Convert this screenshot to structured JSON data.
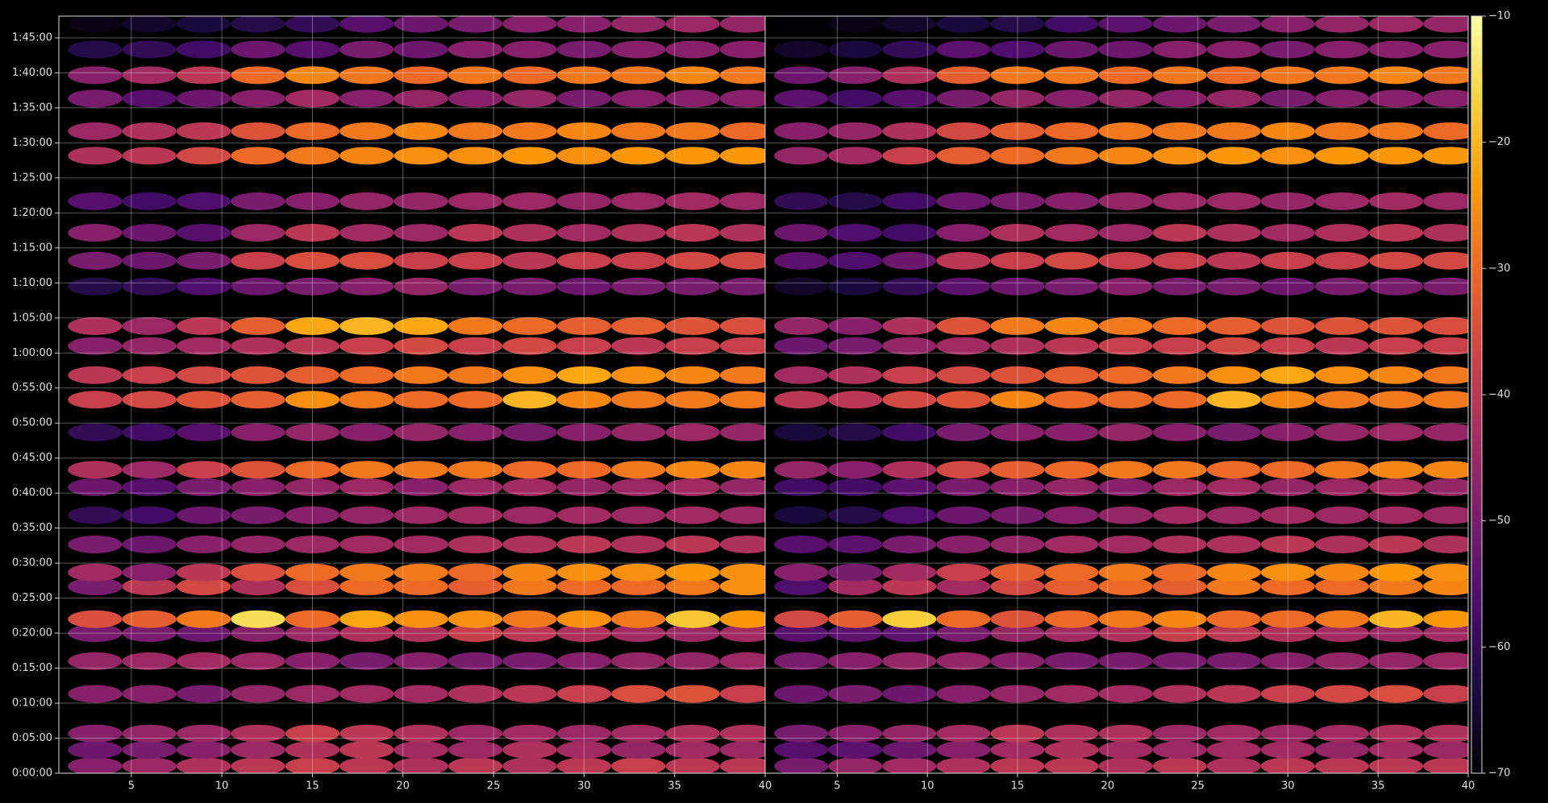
{
  "chart_data": [
    {
      "type": "heatmap",
      "x": [
        3,
        6,
        9,
        12,
        15,
        18,
        21,
        24,
        27,
        30,
        33,
        36,
        39
      ],
      "y": [
        60,
        200,
        340,
        680,
        960,
        1200,
        1320,
        1600,
        1720,
        1960,
        2210,
        2450,
        2600,
        2920,
        3200,
        3410,
        3660,
        3830,
        4170,
        4390,
        4630,
        4900,
        5290,
        5500,
        5780,
        5980,
        6200,
        6420
      ],
      "values": [
        [
          -48,
          -45,
          -42,
          -40,
          -38,
          -40,
          -42,
          -40,
          -42,
          -40,
          -38,
          -40,
          -40
        ],
        [
          -52,
          -50,
          -48,
          -45,
          -42,
          -40,
          -44,
          -45,
          -42,
          -44,
          -46,
          -44,
          -45
        ],
        [
          -48,
          -46,
          -45,
          -42,
          -38,
          -40,
          -42,
          -45,
          -44,
          -45,
          -44,
          -42,
          -42
        ],
        [
          -48,
          -48,
          -50,
          -46,
          -45,
          -44,
          -44,
          -42,
          -40,
          -38,
          -35,
          -34,
          -38
        ],
        [
          -46,
          -45,
          -44,
          -45,
          -48,
          -50,
          -48,
          -50,
          -50,
          -48,
          -46,
          -46,
          -45
        ],
        [
          -50,
          -50,
          -52,
          -48,
          -45,
          -42,
          -42,
          -38,
          -40,
          -42,
          -44,
          -45,
          -44
        ],
        [
          -35,
          -32,
          -28,
          -15,
          -30,
          -22,
          -25,
          -25,
          -28,
          -25,
          -28,
          -18,
          -24
        ],
        [
          -50,
          -40,
          -36,
          -42,
          -35,
          -30,
          -30,
          -32,
          -28,
          -30,
          -30,
          -28,
          -25
        ],
        [
          -44,
          -48,
          -40,
          -35,
          -30,
          -28,
          -28,
          -30,
          -26,
          -25,
          -25,
          -24,
          -25
        ],
        [
          -50,
          -52,
          -48,
          -46,
          -45,
          -44,
          -44,
          -42,
          -42,
          -40,
          -42,
          -40,
          -42
        ],
        [
          -60,
          -58,
          -52,
          -50,
          -48,
          -46,
          -45,
          -44,
          -45,
          -44,
          -45,
          -44,
          -45
        ],
        [
          -52,
          -55,
          -50,
          -48,
          -46,
          -45,
          -48,
          -45,
          -44,
          -46,
          -45,
          -44,
          -46
        ],
        [
          -42,
          -45,
          -38,
          -34,
          -30,
          -28,
          -28,
          -28,
          -30,
          -30,
          -28,
          -26,
          -26
        ],
        [
          -60,
          -58,
          -55,
          -48,
          -46,
          -48,
          -46,
          -48,
          -50,
          -48,
          -46,
          -45,
          -46
        ],
        [
          -38,
          -36,
          -34,
          -32,
          -25,
          -28,
          -30,
          -30,
          -20,
          -26,
          -28,
          -28,
          -28
        ],
        [
          -40,
          -38,
          -36,
          -34,
          -32,
          -30,
          -28,
          -28,
          -25,
          -22,
          -25,
          -26,
          -28
        ],
        [
          -48,
          -46,
          -44,
          -42,
          -40,
          -38,
          -36,
          -38,
          -36,
          -38,
          -40,
          -38,
          -38
        ],
        [
          -42,
          -45,
          -40,
          -32,
          -22,
          -20,
          -22,
          -28,
          -30,
          -32,
          -32,
          -34,
          -35
        ],
        [
          -62,
          -60,
          -56,
          -52,
          -50,
          -48,
          -46,
          -50,
          -50,
          -52,
          -50,
          -50,
          -50
        ],
        [
          -50,
          -52,
          -50,
          -38,
          -35,
          -35,
          -38,
          -38,
          -40,
          -38,
          -38,
          -36,
          -36
        ],
        [
          -48,
          -52,
          -55,
          -45,
          -40,
          -44,
          -45,
          -40,
          -42,
          -44,
          -42,
          -40,
          -42
        ],
        [
          -55,
          -58,
          -56,
          -50,
          -48,
          -46,
          -46,
          -45,
          -45,
          -46,
          -45,
          -44,
          -45
        ],
        [
          -42,
          -40,
          -36,
          -30,
          -28,
          -26,
          -25,
          -25,
          -24,
          -25,
          -24,
          -24,
          -24
        ],
        [
          -45,
          -42,
          -40,
          -34,
          -30,
          -28,
          -26,
          -28,
          -28,
          -26,
          -28,
          -28,
          -30
        ],
        [
          -50,
          -55,
          -52,
          -48,
          -44,
          -48,
          -46,
          -48,
          -46,
          -50,
          -48,
          -48,
          -48
        ],
        [
          -48,
          -44,
          -40,
          -30,
          -26,
          -28,
          -30,
          -28,
          -30,
          -28,
          -28,
          -26,
          -28
        ],
        [
          -62,
          -60,
          -58,
          -52,
          -55,
          -50,
          -52,
          -48,
          -48,
          -50,
          -48,
          -48,
          -48
        ],
        [
          -68,
          -66,
          -64,
          -62,
          -60,
          -55,
          -52,
          -50,
          -48,
          -48,
          -46,
          -45,
          -46
        ]
      ],
      "xlim": [
        1,
        40
      ],
      "ylim": [
        0,
        6486
      ],
      "xticks": [
        5,
        10,
        15,
        20,
        25,
        30,
        35,
        40
      ],
      "yticks": [
        {
          "value": 0,
          "label": "0:00:00"
        },
        {
          "value": 300,
          "label": "0:05:00"
        },
        {
          "value": 600,
          "label": "0:10:00"
        },
        {
          "value": 900,
          "label": "0:15:00"
        },
        {
          "value": 1200,
          "label": "0:20:00"
        },
        {
          "value": 1500,
          "label": "0:25:00"
        },
        {
          "value": 1800,
          "label": "0:30:00"
        },
        {
          "value": 2100,
          "label": "0:35:00"
        },
        {
          "value": 2400,
          "label": "0:40:00"
        },
        {
          "value": 2700,
          "label": "0:45:00"
        },
        {
          "value": 3000,
          "label": "0:50:00"
        },
        {
          "value": 3300,
          "label": "0:55:00"
        },
        {
          "value": 3600,
          "label": "1:00:00"
        },
        {
          "value": 3900,
          "label": "1:05:00"
        },
        {
          "value": 4200,
          "label": "1:10:00"
        },
        {
          "value": 4500,
          "label": "1:15:00"
        },
        {
          "value": 4800,
          "label": "1:20:00"
        },
        {
          "value": 5100,
          "label": "1:25:00"
        },
        {
          "value": 5400,
          "label": "1:30:00"
        },
        {
          "value": 5700,
          "label": "1:35:00"
        },
        {
          "value": 6000,
          "label": "1:40:00"
        },
        {
          "value": 6300,
          "label": "1:45:00"
        }
      ],
      "grid": true,
      "colormap": "inferno"
    },
    {
      "type": "heatmap",
      "x": [
        3,
        6,
        9,
        12,
        15,
        18,
        21,
        24,
        27,
        30,
        33,
        36,
        39
      ],
      "y": [
        60,
        200,
        340,
        680,
        960,
        1200,
        1320,
        1600,
        1720,
        1960,
        2210,
        2450,
        2600,
        2920,
        3200,
        3410,
        3660,
        3830,
        4170,
        4390,
        4630,
        4900,
        5290,
        5500,
        5780,
        5980,
        6200,
        6420
      ],
      "values": [
        [
          -50,
          -46,
          -44,
          -42,
          -40,
          -40,
          -42,
          -40,
          -42,
          -40,
          -40,
          -40,
          -40
        ],
        [
          -55,
          -54,
          -52,
          -48,
          -44,
          -42,
          -44,
          -45,
          -44,
          -44,
          -46,
          -44,
          -45
        ],
        [
          -50,
          -48,
          -46,
          -44,
          -40,
          -42,
          -42,
          -45,
          -44,
          -45,
          -44,
          -42,
          -42
        ],
        [
          -52,
          -50,
          -52,
          -48,
          -46,
          -44,
          -44,
          -42,
          -40,
          -38,
          -36,
          -35,
          -38
        ],
        [
          -50,
          -48,
          -46,
          -46,
          -48,
          -50,
          -50,
          -50,
          -50,
          -48,
          -46,
          -46,
          -45
        ],
        [
          -55,
          -54,
          -54,
          -50,
          -46,
          -44,
          -42,
          -38,
          -40,
          -42,
          -44,
          -45,
          -44
        ],
        [
          -36,
          -32,
          -17,
          -30,
          -34,
          -30,
          -28,
          -26,
          -30,
          -30,
          -28,
          -20,
          -24
        ],
        [
          -56,
          -44,
          -40,
          -44,
          -36,
          -32,
          -30,
          -32,
          -28,
          -30,
          -30,
          -28,
          -26
        ],
        [
          -48,
          -50,
          -44,
          -38,
          -32,
          -30,
          -28,
          -30,
          -26,
          -25,
          -26,
          -24,
          -25
        ],
        [
          -55,
          -54,
          -50,
          -48,
          -46,
          -44,
          -44,
          -42,
          -42,
          -40,
          -42,
          -40,
          -42
        ],
        [
          -64,
          -62,
          -56,
          -52,
          -50,
          -48,
          -46,
          -44,
          -45,
          -44,
          -45,
          -44,
          -45
        ],
        [
          -58,
          -58,
          -54,
          -50,
          -48,
          -46,
          -48,
          -45,
          -44,
          -46,
          -45,
          -44,
          -46
        ],
        [
          -46,
          -48,
          -42,
          -36,
          -32,
          -30,
          -28,
          -28,
          -30,
          -30,
          -28,
          -26,
          -26
        ],
        [
          -64,
          -62,
          -58,
          -50,
          -48,
          -48,
          -46,
          -48,
          -50,
          -48,
          -46,
          -45,
          -46
        ],
        [
          -40,
          -40,
          -36,
          -34,
          -26,
          -30,
          -30,
          -30,
          -20,
          -26,
          -28,
          -28,
          -28
        ],
        [
          -44,
          -42,
          -38,
          -36,
          -34,
          -32,
          -30,
          -28,
          -25,
          -22,
          -25,
          -26,
          -28
        ],
        [
          -52,
          -50,
          -46,
          -44,
          -42,
          -40,
          -38,
          -38,
          -36,
          -38,
          -40,
          -38,
          -38
        ],
        [
          -46,
          -48,
          -42,
          -34,
          -28,
          -26,
          -28,
          -30,
          -32,
          -34,
          -34,
          -34,
          -35
        ],
        [
          -66,
          -64,
          -60,
          -54,
          -52,
          -50,
          -48,
          -50,
          -50,
          -52,
          -50,
          -50,
          -50
        ],
        [
          -54,
          -56,
          -52,
          -40,
          -38,
          -36,
          -38,
          -38,
          -40,
          -38,
          -38,
          -36,
          -36
        ],
        [
          -52,
          -56,
          -58,
          -48,
          -42,
          -44,
          -45,
          -40,
          -42,
          -44,
          -42,
          -40,
          -42
        ],
        [
          -60,
          -62,
          -58,
          -52,
          -50,
          -48,
          -46,
          -45,
          -45,
          -46,
          -45,
          -44,
          -45
        ],
        [
          -46,
          -44,
          -38,
          -32,
          -30,
          -28,
          -26,
          -25,
          -24,
          -25,
          -24,
          -24,
          -24
        ],
        [
          -48,
          -46,
          -42,
          -36,
          -32,
          -30,
          -28,
          -28,
          -28,
          -26,
          -28,
          -28,
          -30
        ],
        [
          -54,
          -58,
          -55,
          -50,
          -46,
          -48,
          -46,
          -48,
          -46,
          -50,
          -48,
          -48,
          -48
        ],
        [
          -52,
          -48,
          -42,
          -32,
          -28,
          -28,
          -30,
          -28,
          -30,
          -28,
          -28,
          -26,
          -28
        ],
        [
          -66,
          -64,
          -60,
          -54,
          -56,
          -52,
          -52,
          -48,
          -48,
          -50,
          -48,
          -48,
          -48
        ],
        [
          -70,
          -68,
          -66,
          -64,
          -62,
          -58,
          -54,
          -52,
          -50,
          -48,
          -46,
          -45,
          -46
        ]
      ],
      "xlim": [
        1,
        40
      ],
      "ylim": [
        0,
        6486
      ],
      "xticks": [
        5,
        10,
        15,
        20,
        25,
        30,
        35,
        40
      ],
      "yticks": [
        0,
        300,
        600,
        900,
        1200,
        1500,
        1800,
        2100,
        2400,
        2700,
        3000,
        3300,
        3600,
        3900,
        4200,
        4500,
        4800,
        5100,
        5400,
        5700,
        6000,
        6300
      ],
      "grid": true,
      "colormap": "inferno"
    }
  ],
  "colorbar": {
    "lim": [
      -70,
      -10
    ],
    "colormap": "inferno",
    "ticks": [
      {
        "value": -70,
        "label": "−70"
      },
      {
        "value": -60,
        "label": "−60"
      },
      {
        "value": -50,
        "label": "−50"
      },
      {
        "value": -40,
        "label": "−40"
      },
      {
        "value": -30,
        "label": "−30"
      },
      {
        "value": -20,
        "label": "−20"
      },
      {
        "value": -10,
        "label": "−10"
      }
    ]
  }
}
